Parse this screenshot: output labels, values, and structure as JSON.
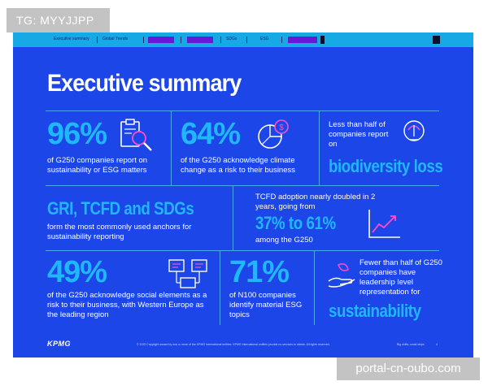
{
  "badge": "TG: MYYJJPP",
  "watermark": "portal-cn-oubo.com",
  "nav": {
    "items": [
      "Executive summary",
      "Global Trends",
      "SDGs",
      "ESG"
    ]
  },
  "title": "Executive summary",
  "stats": {
    "s1": {
      "value": "96%",
      "text": "of G250 companies report on sustainability or ESG matters"
    },
    "s2": {
      "value": "64%",
      "text": "of the G250 acknowledge climate change as a risk to their business"
    },
    "s3": {
      "text": "Less than half of companies report on",
      "highlight": "biodiversity loss"
    },
    "s4": {
      "highlight": "GRI, TCFD and SDGs",
      "text": "form the most commonly used anchors for sustainability reporting"
    },
    "s5": {
      "text": "TCFD adoption nearly doubled in 2 years, going from",
      "highlight": "37% to 61%",
      "text2": "among the G250"
    },
    "s6": {
      "value": "49%",
      "text": "of the G250 acknowledge social elements as a risk to their business, with Western Europe as the leading region"
    },
    "s7": {
      "value": "71%",
      "text": "of N100 companies identify material ESG topics"
    },
    "s8": {
      "text": "Fewer than half of G250 companies have leadership level representation for",
      "highlight": "sustainability"
    }
  },
  "footer": {
    "logo": "KPMG",
    "copyright": "© 2022 Copyright owned by one or more of the KPMG International entities. KPMG International entities provide no services to clients. All rights reserved.",
    "right": "Big shifts, small steps",
    "page": "4"
  },
  "colors": {
    "background": "#1d46e8",
    "accent": "#1fb8ff",
    "topbar": "#17a8e6",
    "purple": "#6a17d6",
    "pink": "#ff4fc8"
  }
}
